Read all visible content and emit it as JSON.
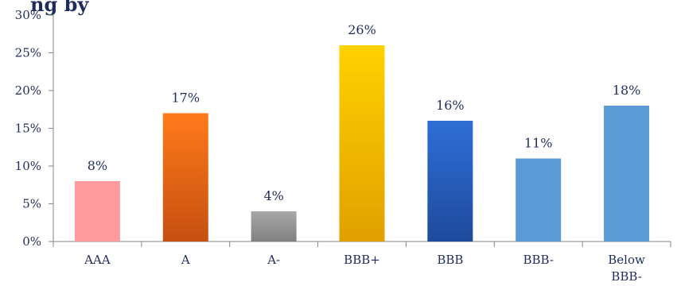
{
  "header": {
    "title_fragment": "ng by"
  },
  "chart_data": {
    "type": "bar",
    "title": "",
    "xlabel": "",
    "ylabel": "",
    "ylim": [
      0,
      30
    ],
    "yticks": [
      "0%",
      "5%",
      "10%",
      "15%",
      "20%",
      "25%",
      "30%"
    ],
    "ytick_values": [
      0,
      5,
      10,
      15,
      20,
      25,
      30
    ],
    "categories": [
      "AAA",
      "A",
      "A-",
      "BBB+",
      "BBB",
      "BBB-",
      "Below BBB-"
    ],
    "category_lines": [
      [
        "AAA"
      ],
      [
        "A"
      ],
      [
        "A-"
      ],
      [
        "BBB+"
      ],
      [
        "BBB"
      ],
      [
        "BBB-"
      ],
      [
        "Below",
        "BBB-"
      ]
    ],
    "values": [
      8,
      17,
      4,
      26,
      16,
      11,
      18
    ],
    "data_labels": [
      "8%",
      "17%",
      "4%",
      "26%",
      "16%",
      "11%",
      "18%"
    ],
    "colors": [
      [
        "#ff9a9e",
        "#ff9a9e"
      ],
      [
        "#ff7a1a",
        "#c55010"
      ],
      [
        "#a8a8a8",
        "#808080"
      ],
      [
        "#ffd200",
        "#e0a000"
      ],
      [
        "#2e6fd6",
        "#1e4a9c"
      ],
      [
        "#5b9bd5",
        "#5b9bd5"
      ],
      [
        "#5b9bd5",
        "#5b9bd5"
      ]
    ],
    "grid": false,
    "legend": "none"
  }
}
